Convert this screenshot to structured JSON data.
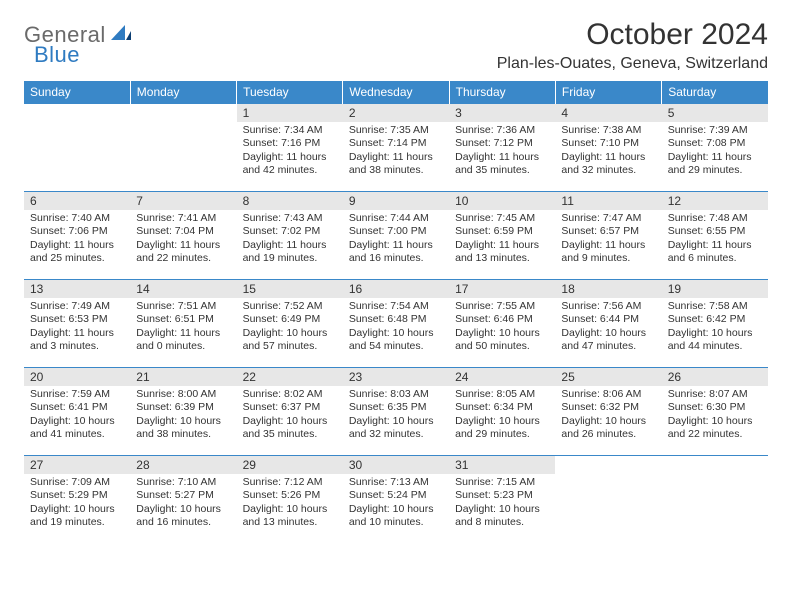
{
  "logo": {
    "word1": "General",
    "word2": "Blue"
  },
  "title": "October 2024",
  "location": "Plan-les-Ouates, Geneva, Switzerland",
  "colors": {
    "header_bg": "#3a88c9",
    "header_fg": "#ffffff",
    "daynum_bg": "#e7e7e7",
    "border": "#3a88c9",
    "logo_gray": "#6a6a6a",
    "logo_blue": "#2f7bc1",
    "text": "#333333",
    "background": "#ffffff"
  },
  "day_headers": [
    "Sunday",
    "Monday",
    "Tuesday",
    "Wednesday",
    "Thursday",
    "Friday",
    "Saturday"
  ],
  "weeks": [
    [
      {
        "day": null
      },
      {
        "day": null
      },
      {
        "day": 1,
        "sunrise": "7:34 AM",
        "sunset": "7:16 PM",
        "daylight": "11 hours and 42 minutes."
      },
      {
        "day": 2,
        "sunrise": "7:35 AM",
        "sunset": "7:14 PM",
        "daylight": "11 hours and 38 minutes."
      },
      {
        "day": 3,
        "sunrise": "7:36 AM",
        "sunset": "7:12 PM",
        "daylight": "11 hours and 35 minutes."
      },
      {
        "day": 4,
        "sunrise": "7:38 AM",
        "sunset": "7:10 PM",
        "daylight": "11 hours and 32 minutes."
      },
      {
        "day": 5,
        "sunrise": "7:39 AM",
        "sunset": "7:08 PM",
        "daylight": "11 hours and 29 minutes."
      }
    ],
    [
      {
        "day": 6,
        "sunrise": "7:40 AM",
        "sunset": "7:06 PM",
        "daylight": "11 hours and 25 minutes."
      },
      {
        "day": 7,
        "sunrise": "7:41 AM",
        "sunset": "7:04 PM",
        "daylight": "11 hours and 22 minutes."
      },
      {
        "day": 8,
        "sunrise": "7:43 AM",
        "sunset": "7:02 PM",
        "daylight": "11 hours and 19 minutes."
      },
      {
        "day": 9,
        "sunrise": "7:44 AM",
        "sunset": "7:00 PM",
        "daylight": "11 hours and 16 minutes."
      },
      {
        "day": 10,
        "sunrise": "7:45 AM",
        "sunset": "6:59 PM",
        "daylight": "11 hours and 13 minutes."
      },
      {
        "day": 11,
        "sunrise": "7:47 AM",
        "sunset": "6:57 PM",
        "daylight": "11 hours and 9 minutes."
      },
      {
        "day": 12,
        "sunrise": "7:48 AM",
        "sunset": "6:55 PM",
        "daylight": "11 hours and 6 minutes."
      }
    ],
    [
      {
        "day": 13,
        "sunrise": "7:49 AM",
        "sunset": "6:53 PM",
        "daylight": "11 hours and 3 minutes."
      },
      {
        "day": 14,
        "sunrise": "7:51 AM",
        "sunset": "6:51 PM",
        "daylight": "11 hours and 0 minutes."
      },
      {
        "day": 15,
        "sunrise": "7:52 AM",
        "sunset": "6:49 PM",
        "daylight": "10 hours and 57 minutes."
      },
      {
        "day": 16,
        "sunrise": "7:54 AM",
        "sunset": "6:48 PM",
        "daylight": "10 hours and 54 minutes."
      },
      {
        "day": 17,
        "sunrise": "7:55 AM",
        "sunset": "6:46 PM",
        "daylight": "10 hours and 50 minutes."
      },
      {
        "day": 18,
        "sunrise": "7:56 AM",
        "sunset": "6:44 PM",
        "daylight": "10 hours and 47 minutes."
      },
      {
        "day": 19,
        "sunrise": "7:58 AM",
        "sunset": "6:42 PM",
        "daylight": "10 hours and 44 minutes."
      }
    ],
    [
      {
        "day": 20,
        "sunrise": "7:59 AM",
        "sunset": "6:41 PM",
        "daylight": "10 hours and 41 minutes."
      },
      {
        "day": 21,
        "sunrise": "8:00 AM",
        "sunset": "6:39 PM",
        "daylight": "10 hours and 38 minutes."
      },
      {
        "day": 22,
        "sunrise": "8:02 AM",
        "sunset": "6:37 PM",
        "daylight": "10 hours and 35 minutes."
      },
      {
        "day": 23,
        "sunrise": "8:03 AM",
        "sunset": "6:35 PM",
        "daylight": "10 hours and 32 minutes."
      },
      {
        "day": 24,
        "sunrise": "8:05 AM",
        "sunset": "6:34 PM",
        "daylight": "10 hours and 29 minutes."
      },
      {
        "day": 25,
        "sunrise": "8:06 AM",
        "sunset": "6:32 PM",
        "daylight": "10 hours and 26 minutes."
      },
      {
        "day": 26,
        "sunrise": "8:07 AM",
        "sunset": "6:30 PM",
        "daylight": "10 hours and 22 minutes."
      }
    ],
    [
      {
        "day": 27,
        "sunrise": "7:09 AM",
        "sunset": "5:29 PM",
        "daylight": "10 hours and 19 minutes."
      },
      {
        "day": 28,
        "sunrise": "7:10 AM",
        "sunset": "5:27 PM",
        "daylight": "10 hours and 16 minutes."
      },
      {
        "day": 29,
        "sunrise": "7:12 AM",
        "sunset": "5:26 PM",
        "daylight": "10 hours and 13 minutes."
      },
      {
        "day": 30,
        "sunrise": "7:13 AM",
        "sunset": "5:24 PM",
        "daylight": "10 hours and 10 minutes."
      },
      {
        "day": 31,
        "sunrise": "7:15 AM",
        "sunset": "5:23 PM",
        "daylight": "10 hours and 8 minutes."
      },
      {
        "day": null
      },
      {
        "day": null
      }
    ]
  ],
  "labels": {
    "sunrise": "Sunrise: ",
    "sunset": "Sunset: ",
    "daylight": "Daylight: "
  }
}
